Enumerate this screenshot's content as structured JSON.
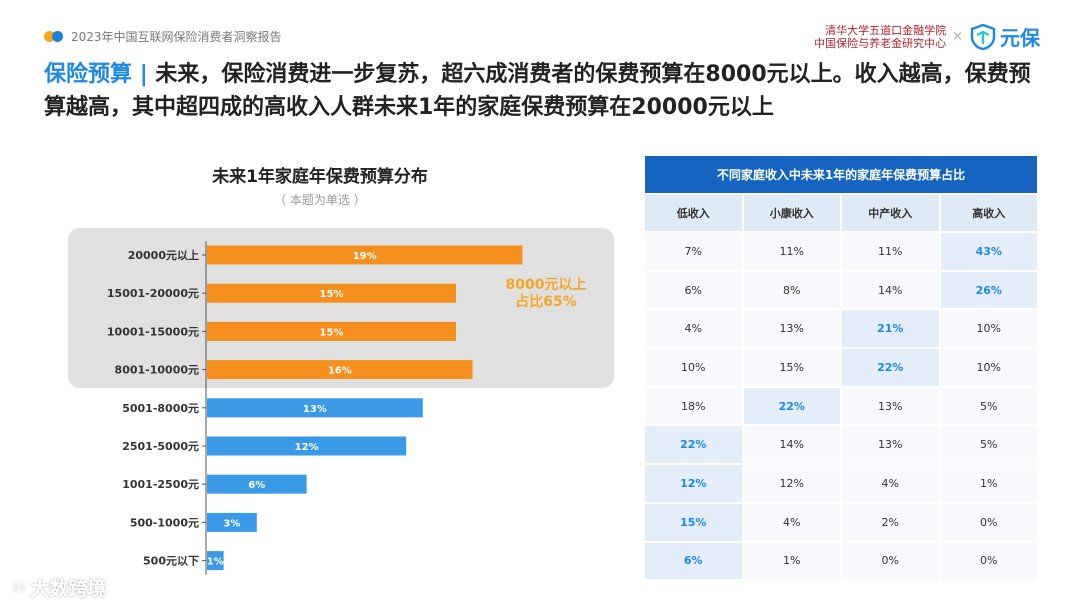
{
  "header": {
    "report_title": "2023年中国互联网保险消费者洞察报告"
  },
  "logos": {
    "institution_line1": "清华大学五道口金融学院",
    "institution_line2": "中国保险与养老金研究中心",
    "separator": "×",
    "brand": "元保"
  },
  "headline": {
    "tag": "保险预算",
    "separator": "|",
    "text": "未来，保险消费进一步复苏，超六成消费者的保费预算在8000元以上。收入越高，保费预算越高，其中超四成的高收入人群未来1年的家庭保费预算在20000元以上"
  },
  "note": {
    "line1": "8000元以上",
    "line2": "占比65%"
  },
  "chart_data": {
    "type": "bar",
    "orientation": "horizontal",
    "title": "未来1年家庭年保费预算分布",
    "subtitle": "（ 本题为单选 ）",
    "categories": [
      "20000元以上",
      "15001-20000元",
      "10001-15000元",
      "8001-10000元",
      "5001-8000元",
      "2501-5000元",
      "1001-2500元",
      "500-1000元",
      "500元以下"
    ],
    "values": [
      19,
      15,
      15,
      16,
      13,
      12,
      6,
      3,
      1
    ],
    "value_labels": [
      "19%",
      "15%",
      "15%",
      "16%",
      "13%",
      "12%",
      "6%",
      "3%",
      "1%"
    ],
    "unit": "%",
    "xlim": [
      0,
      20
    ],
    "colors": {
      "highlight": "#f5901e",
      "normal": "#3a9ae8"
    },
    "highlight_count": 4
  },
  "table": {
    "title": "不同家庭收入中未来1年的家庭年保费预算占比",
    "columns": [
      "低收入",
      "小康收入",
      "中产收入",
      "高收入"
    ],
    "rows": [
      [
        "7%",
        "11%",
        "11%",
        "43%"
      ],
      [
        "6%",
        "8%",
        "14%",
        "26%"
      ],
      [
        "4%",
        "13%",
        "21%",
        "10%"
      ],
      [
        "10%",
        "15%",
        "22%",
        "10%"
      ],
      [
        "18%",
        "22%",
        "13%",
        "5%"
      ],
      [
        "22%",
        "14%",
        "13%",
        "5%"
      ],
      [
        "12%",
        "12%",
        "4%",
        "1%"
      ],
      [
        "15%",
        "4%",
        "2%",
        "0%"
      ],
      [
        "6%",
        "1%",
        "0%",
        "0%"
      ]
    ],
    "highlight_column_per_row": [
      3,
      3,
      2,
      2,
      1,
      0,
      0,
      0,
      0
    ],
    "highlight_color": "#1e88e5"
  },
  "watermark": {
    "text": "大数跨境"
  }
}
